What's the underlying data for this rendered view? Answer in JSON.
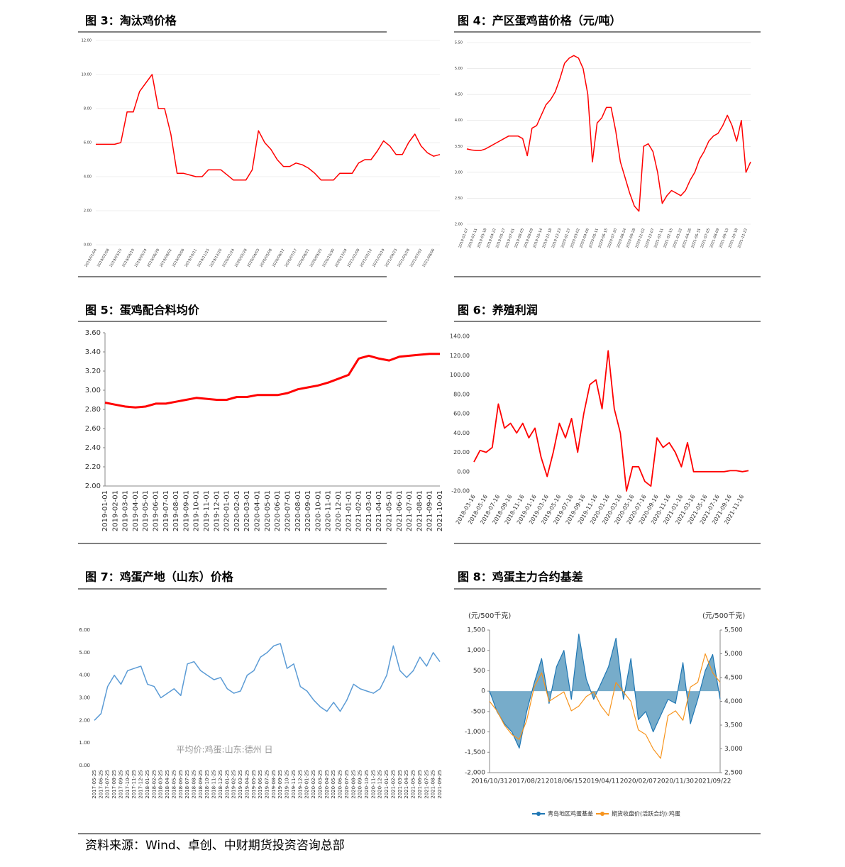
{
  "chart_data": [
    {
      "type": "line",
      "title": "图 3：淘汰鸡价格",
      "color": "#ff0000",
      "grid": true,
      "categories": [
        "2019/01/04",
        null,
        "2019/02/08",
        null,
        "2019/03/15",
        null,
        "2019/04/19",
        null,
        "2019/05/24",
        null,
        "2019/06/28",
        null,
        "2019/08/02",
        null,
        "2019/09/06",
        null,
        "2019/10/11",
        null,
        "2019/11/15",
        null,
        "2019/12/20",
        null,
        "2020/01/24",
        null,
        "2020/02/28",
        null,
        "2020/04/03",
        null,
        "2020/05/08",
        null,
        "2020/06/12",
        null,
        "2020/07/17",
        null,
        "2020/08/21",
        null,
        "2020/09/25",
        null,
        "2020/10/30",
        null,
        "2020/12/04",
        null,
        "2021/01/08",
        null,
        "2021/02/12",
        null,
        "2021/03/19",
        null,
        "2021/04/23",
        null,
        "2021/05/28",
        null,
        "2021/07/02",
        null,
        "2021/08/06",
        null
      ],
      "values": [
        5.9,
        5.9,
        5.9,
        5.9,
        6.0,
        7.8,
        7.8,
        9.0,
        9.5,
        10.0,
        8.0,
        8.0,
        6.5,
        4.2,
        4.2,
        4.1,
        4.0,
        4.0,
        4.4,
        4.4,
        4.4,
        4.1,
        3.8,
        3.8,
        3.8,
        4.4,
        6.7,
        6.0,
        5.6,
        5.0,
        4.6,
        4.6,
        4.8,
        4.7,
        4.5,
        4.2,
        3.8,
        3.8,
        3.8,
        4.2,
        4.2,
        4.2,
        4.8,
        5.0,
        5.0,
        5.5,
        6.1,
        5.8,
        5.3,
        5.3,
        6.0,
        6.5,
        5.8,
        5.4,
        5.2,
        5.3
      ],
      "ylim": [
        0,
        12
      ],
      "yticks": [
        {
          "value": 0,
          "label": "0.00"
        },
        {
          "value": 2,
          "label": "2.00"
        },
        {
          "value": 4,
          "label": "4.00"
        },
        {
          "value": 6,
          "label": "6.00"
        },
        {
          "value": 8,
          "label": "8.00"
        },
        {
          "value": 10,
          "label": "10.00"
        },
        {
          "value": 12,
          "label": "12.00"
        }
      ]
    },
    {
      "type": "line",
      "title": "图 4：产区蛋鸡苗价格（元/吨）",
      "color": "#ff0000",
      "grid": true,
      "categories": [
        "2019-01-07",
        null,
        "2019-02-11",
        null,
        "2019-03-18",
        null,
        "2019-04-22",
        null,
        "2019-05-27",
        null,
        "2019-07-01",
        null,
        "2019-08-05",
        null,
        "2019-09-09",
        null,
        "2019-10-14",
        null,
        "2019-11-18",
        null,
        "2019-12-23",
        null,
        "2020-01-27",
        null,
        "2020-03-02",
        null,
        "2020-04-06",
        null,
        "2020-05-11",
        null,
        "2020-06-15",
        null,
        "2020-07-20",
        null,
        "2020-08-24",
        null,
        "2020-09-28",
        null,
        "2020-11-02",
        null,
        "2020-12-07",
        null,
        "2021-01-11",
        null,
        "2021-02-15",
        null,
        "2021-03-22",
        null,
        "2021-04-26",
        null,
        "2021-05-31",
        null,
        "2021-07-05",
        null,
        "2021-08-09",
        null,
        "2021-09-13",
        null,
        "2021-10-18",
        null,
        "2021-11-22",
        null
      ],
      "values": [
        3.45,
        3.43,
        3.42,
        3.42,
        3.45,
        3.5,
        3.55,
        3.6,
        3.65,
        3.7,
        3.7,
        3.7,
        3.65,
        3.32,
        3.85,
        3.9,
        4.1,
        4.3,
        4.4,
        4.55,
        4.8,
        5.1,
        5.2,
        5.25,
        5.2,
        5.0,
        4.5,
        3.2,
        3.95,
        4.05,
        4.25,
        4.25,
        3.8,
        3.2,
        2.9,
        2.6,
        2.35,
        2.25,
        3.5,
        3.55,
        3.4,
        3.0,
        2.4,
        2.55,
        2.65,
        2.6,
        2.55,
        2.65,
        2.85,
        3.0,
        3.25,
        3.4,
        3.6,
        3.7,
        3.75,
        3.9,
        4.1,
        3.9,
        3.6,
        4.0,
        3.0,
        3.2
      ],
      "ylim": [
        2,
        5.5
      ],
      "yticks": [
        {
          "value": 2,
          "label": "2.00"
        },
        {
          "value": 2.5,
          "label": "2.50"
        },
        {
          "value": 3,
          "label": "3.00"
        },
        {
          "value": 3.5,
          "label": "3.50"
        },
        {
          "value": 4,
          "label": "4.00"
        },
        {
          "value": 4.5,
          "label": "4.50"
        },
        {
          "value": 5,
          "label": "5.00"
        },
        {
          "value": 5.5,
          "label": "5.50"
        }
      ]
    },
    {
      "type": "line",
      "title": "图 5：蛋鸡配合料均价",
      "color": "#ff0000",
      "grid": false,
      "categories": [
        "2019-01-01",
        "2019-02-01",
        "2019-03-01",
        "2019-04-01",
        "2019-05-01",
        "2019-06-01",
        "2019-07-01",
        "2019-08-01",
        "2019-09-01",
        "2019-10-01",
        "2019-11-01",
        "2019-12-01",
        "2020-01-01",
        "2020-02-01",
        "2020-03-01",
        "2020-04-01",
        "2020-05-01",
        "2020-06-01",
        "2020-07-01",
        "2020-08-01",
        "2020-09-01",
        "2020-10-01",
        "2020-11-01",
        "2020-12-01",
        "2021-01-01",
        "2021-02-01",
        "2021-03-01",
        "2021-04-01",
        "2021-05-01",
        "2021-06-01",
        "2021-07-01",
        "2021-08-01",
        "2021-09-01",
        "2021-10-01"
      ],
      "values": [
        2.87,
        2.85,
        2.83,
        2.82,
        2.83,
        2.86,
        2.86,
        2.88,
        2.9,
        2.92,
        2.91,
        2.9,
        2.9,
        2.93,
        2.93,
        2.95,
        2.95,
        2.95,
        2.97,
        3.01,
        3.03,
        3.05,
        3.08,
        3.12,
        3.16,
        3.33,
        3.36,
        3.33,
        3.31,
        3.35,
        3.36,
        3.37,
        3.38,
        3.38
      ],
      "ylim": [
        2,
        3.6
      ],
      "yticks": [
        {
          "value": 2,
          "label": "2.00"
        },
        {
          "value": 2.2,
          "label": "2.20"
        },
        {
          "value": 2.4,
          "label": "2.40"
        },
        {
          "value": 2.6,
          "label": "2.60"
        },
        {
          "value": 2.8,
          "label": "2.80"
        },
        {
          "value": 3,
          "label": "3.00"
        },
        {
          "value": 3.2,
          "label": "3.20"
        },
        {
          "value": 3.4,
          "label": "3.40"
        },
        {
          "value": 3.6,
          "label": "3.60"
        }
      ]
    },
    {
      "type": "line",
      "title": "图 6：养殖利润",
      "color": "#ff0000",
      "grid": false,
      "categories": [
        "2018-03-16",
        null,
        "2018-05-16",
        null,
        "2018-07-16",
        null,
        "2018-09-16",
        null,
        "2018-11-16",
        null,
        "2019-01-16",
        null,
        "2019-03-16",
        null,
        "2019-05-16",
        null,
        "2019-07-16",
        null,
        "2019-09-16",
        null,
        "2019-11-16",
        null,
        "2020-01-16",
        null,
        "2020-03-16",
        null,
        "2020-05-16",
        null,
        "2020-07-16",
        null,
        "2020-09-16",
        null,
        "2020-11-16",
        null,
        "2021-01-16",
        null,
        "2021-03-16",
        null,
        "2021-05-16",
        null,
        "2021-07-16",
        null,
        "2021-09-16",
        null,
        "2021-11-16",
        null
      ],
      "values": [
        10,
        22,
        20,
        25,
        70,
        45,
        50,
        40,
        50,
        35,
        45,
        15,
        -5,
        20,
        50,
        35,
        55,
        20,
        60,
        90,
        95,
        65,
        125,
        65,
        40,
        -20,
        5,
        5,
        -10,
        -15,
        35,
        25,
        30,
        20,
        5,
        30,
        0,
        0,
        0,
        0,
        0,
        0,
        1,
        1,
        0,
        1
      ],
      "ylim": [
        -20,
        140
      ],
      "yticks": [
        {
          "value": -20,
          "label": "-20.00"
        },
        {
          "value": 0,
          "label": "0.00"
        },
        {
          "value": 20,
          "label": "20.00"
        },
        {
          "value": 40,
          "label": "40.00"
        },
        {
          "value": 60,
          "label": "60.00"
        },
        {
          "value": 80,
          "label": "80.00"
        },
        {
          "value": 100,
          "label": "100.00"
        },
        {
          "value": 120,
          "label": "120.00"
        },
        {
          "value": 140,
          "label": "140.00"
        }
      ]
    },
    {
      "type": "line",
      "title": "图 7：鸡蛋产地（山东）价格",
      "color": "#5b9bd5",
      "grid": false,
      "annotation": "平均价:鸡蛋:山东:德州 日",
      "categories": [
        "2017-05-25",
        "2017-06-25",
        "2017-07-25",
        "2017-08-25",
        "2017-09-25",
        "2017-10-25",
        "2017-11-25",
        "2017-12-25",
        "2018-01-25",
        "2018-02-25",
        "2018-03-25",
        "2018-04-25",
        "2018-05-25",
        "2018-06-25",
        "2018-07-25",
        "2018-08-25",
        "2018-09-25",
        "2018-10-25",
        "2018-11-25",
        "2018-12-25",
        "2019-01-25",
        "2019-02-25",
        "2019-03-25",
        "2019-04-25",
        "2019-05-25",
        "2019-06-25",
        "2019-07-25",
        "2019-08-25",
        "2019-09-25",
        "2019-10-25",
        "2019-11-25",
        "2019-12-25",
        "2020-01-25",
        "2020-02-25",
        "2020-03-25",
        "2020-04-25",
        "2020-05-25",
        "2020-06-25",
        "2020-07-25",
        "2020-08-25",
        "2020-09-25",
        "2020-10-25",
        "2020-11-25",
        "2020-12-25",
        "2021-01-25",
        "2021-02-25",
        "2021-03-25",
        "2021-04-25",
        "2021-05-25",
        "2021-06-25",
        "2021-07-25",
        "2021-08-25",
        "2021-09-25"
      ],
      "values": [
        2.0,
        2.3,
        3.5,
        4.0,
        3.6,
        4.2,
        4.3,
        4.4,
        3.6,
        3.5,
        3.0,
        3.2,
        3.4,
        3.1,
        4.5,
        4.6,
        4.2,
        4.0,
        3.8,
        3.9,
        3.4,
        3.2,
        3.3,
        4.0,
        4.2,
        4.8,
        5.0,
        5.3,
        5.4,
        4.3,
        4.5,
        3.5,
        3.3,
        2.9,
        2.6,
        2.4,
        2.8,
        2.4,
        2.9,
        3.6,
        3.4,
        3.3,
        3.2,
        3.4,
        4.0,
        5.3,
        4.2,
        3.9,
        4.2,
        4.8,
        4.4,
        5.0,
        4.6
      ],
      "ylim": [
        0,
        6
      ],
      "yticks": [
        {
          "value": 0,
          "label": "0.00"
        },
        {
          "value": 1,
          "label": "1.00"
        },
        {
          "value": 2,
          "label": "2.00"
        },
        {
          "value": 3,
          "label": "3.00"
        },
        {
          "value": 4,
          "label": "4.00"
        },
        {
          "value": 5,
          "label": "5.00"
        },
        {
          "value": 6,
          "label": "6.00"
        }
      ]
    },
    {
      "type": "line",
      "title": "图 8：鸡蛋主力合约基差",
      "grid": false,
      "ylabel": "(元/500千克)",
      "y2label": "(元/500千克)",
      "categories": [
        "2016/10/31",
        null,
        null,
        null,
        null,
        "2017/08/21",
        null,
        null,
        null,
        null,
        "2018/06/15",
        null,
        null,
        null,
        null,
        "2019/04/11",
        null,
        null,
        null,
        null,
        "2020/02/07",
        null,
        null,
        null,
        null,
        "2020/11/30",
        null,
        null,
        null,
        null,
        "2021/09/22",
        null
      ],
      "series": [
        {
          "name": "青岛地区鸡蛋基差",
          "color": "#1f77b4",
          "type": "area",
          "values": [
            0,
            -500,
            -800,
            -1000,
            -1400,
            -500,
            200,
            800,
            -300,
            600,
            1000,
            -200,
            1400,
            300,
            -200,
            200,
            600,
            1300,
            -200,
            800,
            -700,
            -500,
            -1000,
            -600,
            -200,
            -300,
            700,
            -800,
            -200,
            500,
            900,
            -200
          ]
        },
        {
          "name": "期货收盘价(活跃合约):鸡蛋",
          "color": "#f7941d",
          "type": "line",
          "axis": "y2",
          "values": [
            4000,
            3800,
            3500,
            3300,
            3200,
            3600,
            4300,
            4600,
            4000,
            4100,
            4200,
            3800,
            3900,
            4100,
            4200,
            3900,
            3700,
            4400,
            4200,
            4000,
            3400,
            3300,
            3000,
            2800,
            3700,
            3800,
            3600,
            4300,
            4400,
            5000,
            4600,
            4400
          ]
        }
      ],
      "ylim": [
        -2000,
        1500
      ],
      "yticks": [
        {
          "value": -2000,
          "label": "-2,000"
        },
        {
          "value": -1500,
          "label": "-1,500"
        },
        {
          "value": -1000,
          "label": "-1,000"
        },
        -500,
        0,
        500,
        {
          "value": 1000,
          "label": "1,000"
        },
        {
          "value": 1500,
          "label": "1,500"
        }
      ],
      "y2lim": [
        2500,
        5500
      ],
      "y2ticks": [
        {
          "value": 2500,
          "label": "2,500"
        },
        {
          "value": 3000,
          "label": "3,000"
        },
        {
          "value": 3500,
          "label": "3,500"
        },
        {
          "value": 4000,
          "label": "4,000"
        },
        {
          "value": 4500,
          "label": "4,500"
        },
        {
          "value": 5000,
          "label": "5,000"
        },
        {
          "value": 5500,
          "label": "5,500"
        }
      ]
    }
  ],
  "source": "资料来源：Wind、卓创、中财期货投资咨询总部"
}
